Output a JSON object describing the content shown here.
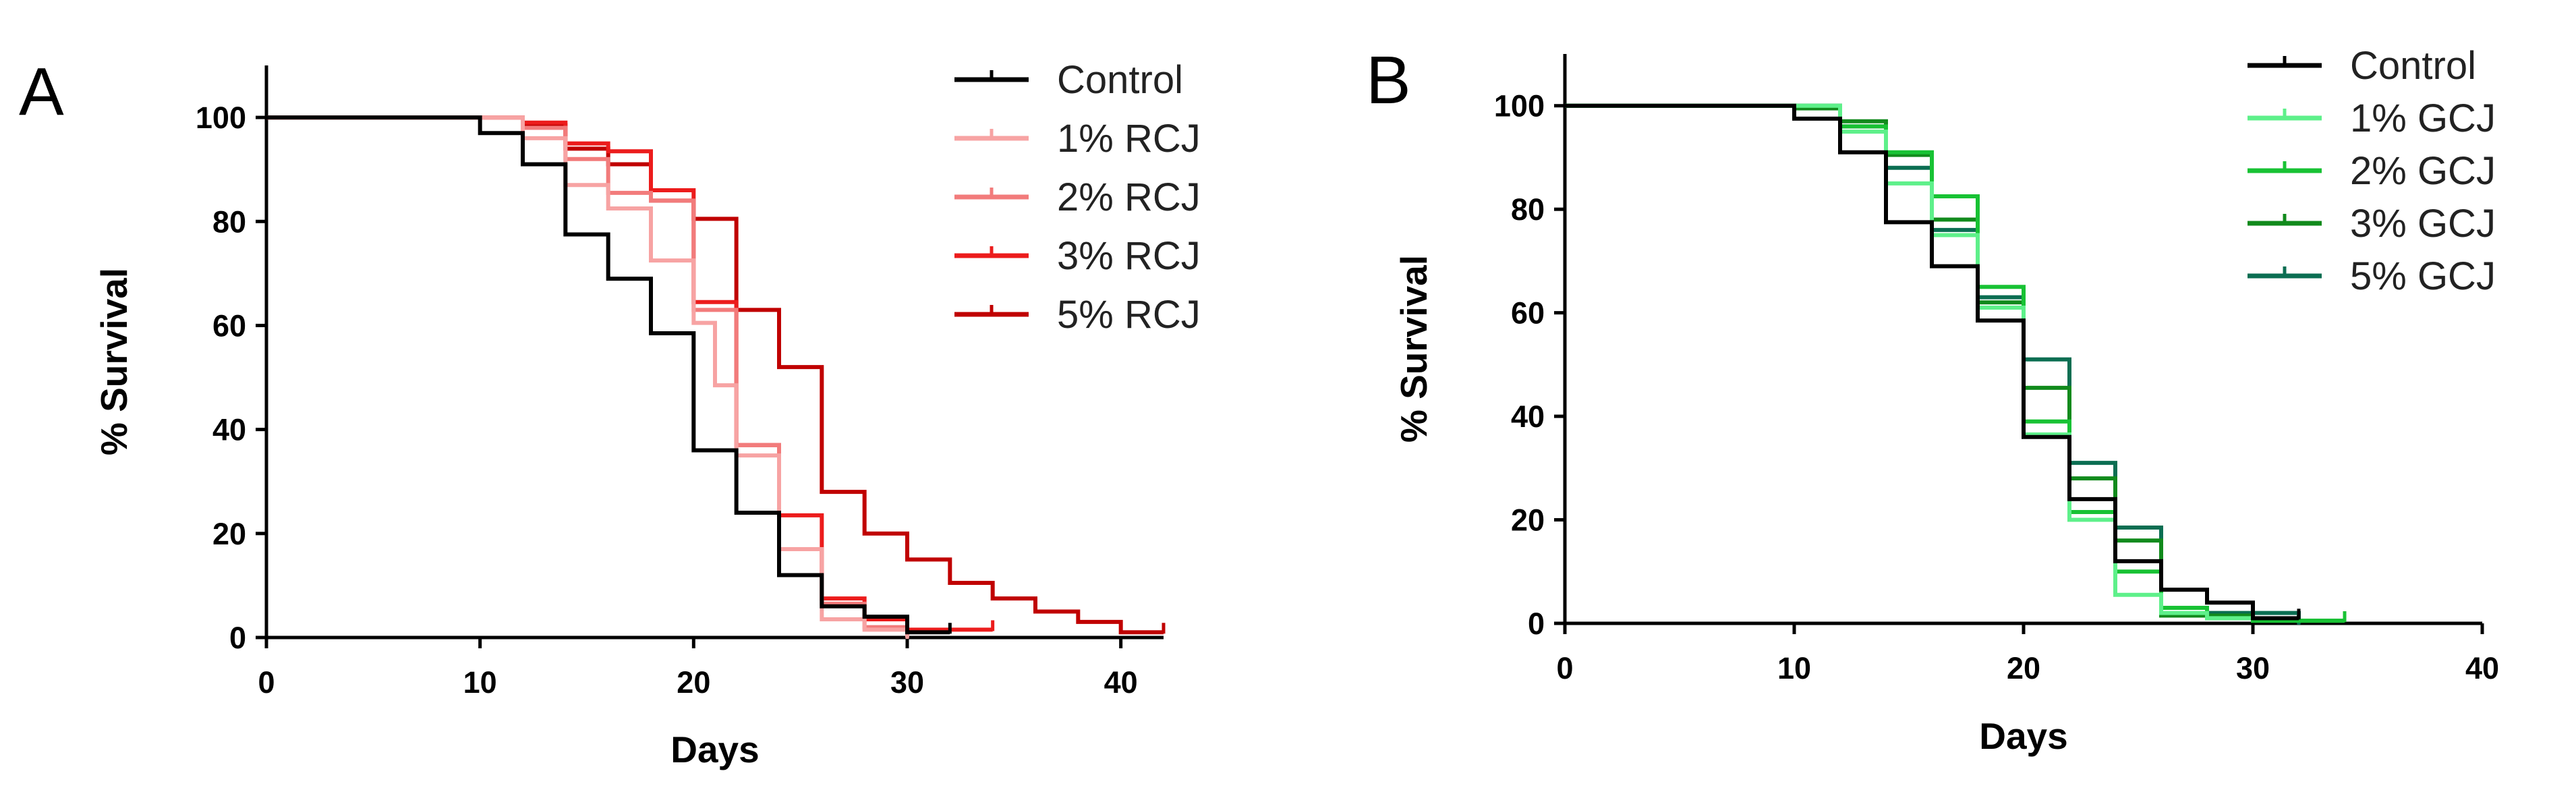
{
  "chart_data": [
    {
      "type": "line",
      "step": true,
      "panel_label": "A",
      "xlabel": "Days",
      "ylabel": "% Survival",
      "xlim": [
        0,
        42
      ],
      "ylim": [
        0,
        110
      ],
      "xticks": [
        0,
        10,
        20,
        30,
        40
      ],
      "yticks": [
        0,
        20,
        40,
        60,
        80,
        100
      ],
      "grid": false,
      "legend_position": "top-right",
      "series": [
        {
          "name": "Control",
          "color": "#000000",
          "x": [
            0,
            10,
            12,
            14,
            16,
            18,
            20,
            22,
            24,
            26,
            28,
            30,
            32
          ],
          "y": [
            100,
            97,
            91,
            77.5,
            69,
            58.5,
            36,
            24,
            12,
            6,
            4,
            1,
            1
          ]
        },
        {
          "name": "1% RCJ",
          "color": "#f7a3a3",
          "x": [
            0,
            10,
            12,
            14,
            16,
            18,
            20,
            21,
            22,
            24,
            26,
            28,
            30
          ],
          "y": [
            100,
            100,
            96,
            87,
            82.5,
            72.5,
            60.5,
            48.5,
            35,
            17,
            3.5,
            1.5,
            0
          ]
        },
        {
          "name": "2% RCJ",
          "color": "#f27b7b",
          "x": [
            0,
            10,
            12,
            14,
            16,
            18,
            20,
            22,
            24,
            26,
            28,
            30
          ],
          "y": [
            100,
            100,
            98,
            92,
            85.5,
            84,
            63,
            37,
            17,
            6.5,
            2,
            0
          ]
        },
        {
          "name": "3% RCJ",
          "color": "#ec1c1c",
          "x": [
            0,
            10,
            12,
            14,
            16,
            18,
            20,
            22,
            24,
            26,
            28,
            30,
            34
          ],
          "y": [
            100,
            100,
            99,
            95,
            93.5,
            86,
            64.5,
            37,
            23.5,
            7.5,
            3.5,
            1.5,
            1.5
          ]
        },
        {
          "name": "5% RCJ",
          "color": "#c00000",
          "x": [
            0,
            10,
            12,
            14,
            16,
            18,
            20,
            22,
            24,
            26,
            28,
            30,
            32,
            34,
            36,
            38,
            40,
            42
          ],
          "y": [
            100,
            100,
            98.5,
            94,
            91,
            84,
            80.5,
            63,
            52,
            28,
            20,
            15,
            10.5,
            7.5,
            5,
            3,
            1,
            1
          ]
        }
      ]
    },
    {
      "type": "line",
      "step": true,
      "panel_label": "B",
      "xlabel": "Days",
      "ylabel": "% Survival",
      "xlim": [
        0,
        40
      ],
      "ylim": [
        0,
        110
      ],
      "xticks": [
        0,
        10,
        20,
        30,
        40
      ],
      "yticks": [
        0,
        20,
        40,
        60,
        80,
        100
      ],
      "grid": false,
      "legend_position": "top-right",
      "series": [
        {
          "name": "Control",
          "color": "#000000",
          "x": [
            0,
            10,
            12,
            14,
            16,
            18,
            20,
            22,
            24,
            26,
            28,
            30,
            32
          ],
          "y": [
            100,
            97.5,
            91,
            77.5,
            69,
            58.5,
            36,
            24,
            12,
            6.5,
            4,
            1,
            1
          ]
        },
        {
          "name": "1% GCJ",
          "color": "#5ef08a",
          "x": [
            0,
            10,
            12,
            14,
            16,
            18,
            20,
            22,
            24,
            26,
            28,
            30
          ],
          "y": [
            100,
            100,
            95,
            85,
            75,
            61,
            36.5,
            20,
            5.5,
            2,
            1,
            1
          ]
        },
        {
          "name": "2% GCJ",
          "color": "#18c234",
          "x": [
            0,
            10,
            12,
            14,
            16,
            18,
            20,
            22,
            24,
            26,
            28,
            30,
            32,
            34
          ],
          "y": [
            100,
            100,
            96,
            91,
            82.5,
            65,
            39,
            21.5,
            10,
            3,
            1,
            0.5,
            0.5,
            0.5
          ]
        },
        {
          "name": "3% GCJ",
          "color": "#118a1c",
          "x": [
            0,
            10,
            12,
            14,
            16,
            18,
            20,
            22,
            24,
            26,
            28,
            30,
            32,
            34
          ],
          "y": [
            100,
            99.5,
            97,
            90.5,
            78,
            62,
            45.5,
            28,
            16,
            1.5,
            1.5,
            0.5,
            0.5,
            0.5
          ]
        },
        {
          "name": "5% GCJ",
          "color": "#0b6e52",
          "x": [
            0,
            10,
            12,
            14,
            16,
            18,
            20,
            22,
            24,
            26,
            28,
            30,
            32
          ],
          "y": [
            100,
            100,
            96,
            88,
            76,
            63,
            51,
            31,
            18.5,
            3,
            2,
            2,
            0
          ]
        }
      ]
    }
  ]
}
